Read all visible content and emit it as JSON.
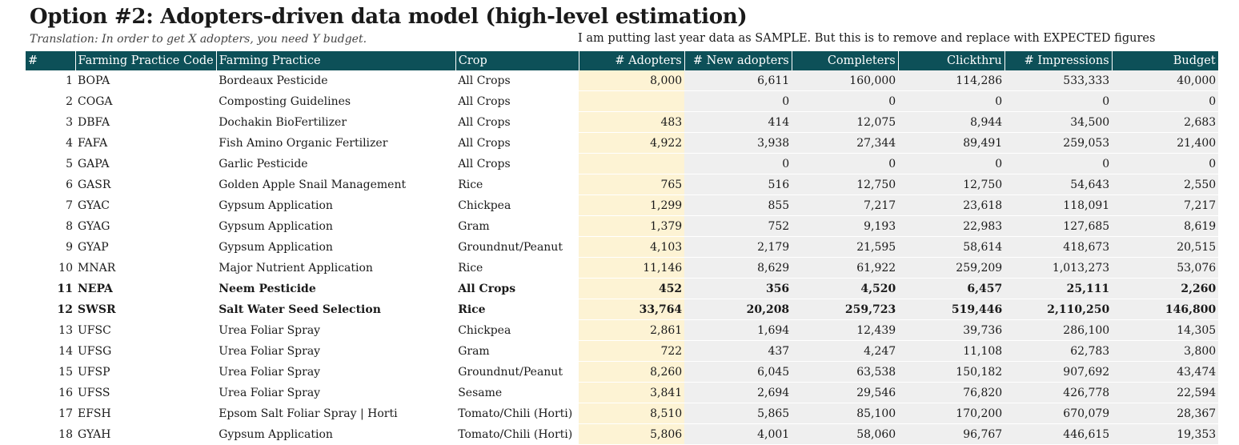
{
  "header": {
    "title": "Option #2: Adopters-driven data model (high-level estimation)",
    "subtitle": "Translation: In order to get X adopters, you need Y budget.",
    "note": "I am putting last year data as SAMPLE. But this is to remove and replace with EXPECTED figures"
  },
  "colors": {
    "header_bg": "#0d5058",
    "adopters_bg": "#fdf3d4",
    "computed_bg": "#efefef"
  },
  "table": {
    "columns": [
      "#",
      "Farming Practice Code",
      "Farming Practice",
      "Crop",
      "# Adopters",
      "# New adopters",
      "Completers",
      "Clickthru",
      "# Impressions",
      "Budget"
    ],
    "rows": [
      {
        "n": "1",
        "code": "BOPA",
        "practice": "Bordeaux Pesticide",
        "crop": "All Crops",
        "adopters": "8,000",
        "new": "6,611",
        "completers": "160,000",
        "clickthru": "114,286",
        "impressions": "533,333",
        "budget": "40,000",
        "bold": false
      },
      {
        "n": "2",
        "code": "COGA",
        "practice": "Composting Guidelines",
        "crop": "All Crops",
        "adopters": "",
        "new": "0",
        "completers": "0",
        "clickthru": "0",
        "impressions": "0",
        "budget": "0",
        "bold": false
      },
      {
        "n": "3",
        "code": "DBFA",
        "practice": "Dochakin BioFertilizer",
        "crop": "All Crops",
        "adopters": "483",
        "new": "414",
        "completers": "12,075",
        "clickthru": "8,944",
        "impressions": "34,500",
        "budget": "2,683",
        "bold": false
      },
      {
        "n": "4",
        "code": "FAFA",
        "practice": "Fish Amino Organic Fertilizer",
        "crop": "All Crops",
        "adopters": "4,922",
        "new": "3,938",
        "completers": "27,344",
        "clickthru": "89,491",
        "impressions": "259,053",
        "budget": "21,400",
        "bold": false
      },
      {
        "n": "5",
        "code": "GAPA",
        "practice": "Garlic Pesticide",
        "crop": "All Crops",
        "adopters": "",
        "new": "0",
        "completers": "0",
        "clickthru": "0",
        "impressions": "0",
        "budget": "0",
        "bold": false
      },
      {
        "n": "6",
        "code": "GASR",
        "practice": "Golden Apple Snail Management",
        "crop": "Rice",
        "adopters": "765",
        "new": "516",
        "completers": "12,750",
        "clickthru": "12,750",
        "impressions": "54,643",
        "budget": "2,550",
        "bold": false
      },
      {
        "n": "7",
        "code": "GYAC",
        "practice": "Gypsum Application",
        "crop": "Chickpea",
        "adopters": "1,299",
        "new": "855",
        "completers": "7,217",
        "clickthru": "23,618",
        "impressions": "118,091",
        "budget": "7,217",
        "bold": false
      },
      {
        "n": "8",
        "code": "GYAG",
        "practice": "Gypsum Application",
        "crop": "Gram",
        "adopters": "1,379",
        "new": "752",
        "completers": "9,193",
        "clickthru": "22,983",
        "impressions": "127,685",
        "budget": "8,619",
        "bold": false
      },
      {
        "n": "9",
        "code": "GYAP",
        "practice": "Gypsum Application",
        "crop": "Groundnut/Peanut",
        "adopters": "4,103",
        "new": "2,179",
        "completers": "21,595",
        "clickthru": "58,614",
        "impressions": "418,673",
        "budget": "20,515",
        "bold": false
      },
      {
        "n": "10",
        "code": "MNAR",
        "practice": "Major Nutrient Application",
        "crop": "Rice",
        "adopters": "11,146",
        "new": "8,629",
        "completers": "61,922",
        "clickthru": "259,209",
        "impressions": "1,013,273",
        "budget": "53,076",
        "bold": false
      },
      {
        "n": "11",
        "code": "NEPA",
        "practice": "Neem Pesticide",
        "crop": "All Crops",
        "adopters": "452",
        "new": "356",
        "completers": "4,520",
        "clickthru": "6,457",
        "impressions": "25,111",
        "budget": "2,260",
        "bold": true
      },
      {
        "n": "12",
        "code": "SWSR",
        "practice": "Salt Water Seed Selection",
        "crop": "Rice",
        "adopters": "33,764",
        "new": "20,208",
        "completers": "259,723",
        "clickthru": "519,446",
        "impressions": "2,110,250",
        "budget": "146,800",
        "bold": true
      },
      {
        "n": "13",
        "code": "UFSC",
        "practice": "Urea Foliar Spray",
        "crop": "Chickpea",
        "adopters": "2,861",
        "new": "1,694",
        "completers": "12,439",
        "clickthru": "39,736",
        "impressions": "286,100",
        "budget": "14,305",
        "bold": false
      },
      {
        "n": "14",
        "code": "UFSG",
        "practice": "Urea Foliar Spray",
        "crop": "Gram",
        "adopters": "722",
        "new": "437",
        "completers": "4,247",
        "clickthru": "11,108",
        "impressions": "62,783",
        "budget": "3,800",
        "bold": false
      },
      {
        "n": "15",
        "code": "UFSP",
        "practice": "Urea Foliar Spray",
        "crop": "Groundnut/Peanut",
        "adopters": "8,260",
        "new": "6,045",
        "completers": "63,538",
        "clickthru": "150,182",
        "impressions": "907,692",
        "budget": "43,474",
        "bold": false
      },
      {
        "n": "16",
        "code": "UFSS",
        "practice": "Urea Foliar Spray",
        "crop": "Sesame",
        "adopters": "3,841",
        "new": "2,694",
        "completers": "29,546",
        "clickthru": "76,820",
        "impressions": "426,778",
        "budget": "22,594",
        "bold": false
      },
      {
        "n": "17",
        "code": "EFSH",
        "practice": "Epsom Salt Foliar Spray | Horti",
        "crop": "Tomato/Chili (Horti)",
        "adopters": "8,510",
        "new": "5,865",
        "completers": "85,100",
        "clickthru": "170,200",
        "impressions": "670,079",
        "budget": "28,367",
        "bold": false
      },
      {
        "n": "18",
        "code": "GYAH",
        "practice": "Gypsum Application",
        "crop": "Tomato/Chili (Horti)",
        "adopters": "5,806",
        "new": "4,001",
        "completers": "58,060",
        "clickthru": "96,767",
        "impressions": "446,615",
        "budget": "19,353",
        "bold": false
      }
    ]
  }
}
